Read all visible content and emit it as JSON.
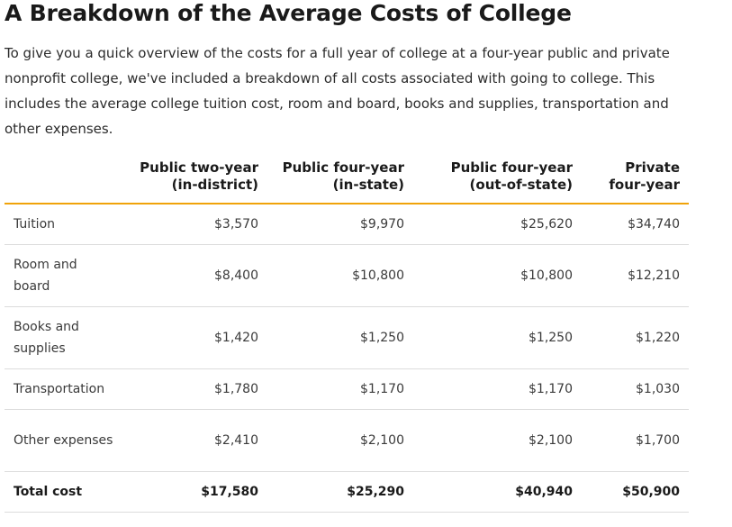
{
  "page": {
    "title": "A Breakdown of the Average Costs of College",
    "intro": "To give you a quick overview of the costs for a full year of college at a four-year public and private nonprofit college, we've included a breakdown of all costs associated with going to college. This includes the average college tuition cost, room and board, books and supplies, transportation and other expenses."
  },
  "table": {
    "headers": [
      "",
      "Public two-year (in-district)",
      "Public four-year (in-state)",
      "Public four-year (out-of-state)",
      "Private four-year"
    ],
    "rows": [
      {
        "label": "Tuition",
        "values": [
          "$3,570",
          "$9,970",
          "$25,620",
          "$34,740"
        ]
      },
      {
        "label": "Room and board",
        "values": [
          "$8,400",
          "$10,800",
          "$10,800",
          "$12,210"
        ]
      },
      {
        "label": "Books and supplies",
        "values": [
          "$1,420",
          "$1,250",
          "$1,250",
          "$1,220"
        ]
      },
      {
        "label": "Transportation",
        "values": [
          "$1,780",
          "$1,170",
          "$1,170",
          "$1,030"
        ]
      },
      {
        "label": "Other expenses",
        "values": [
          "$2,410",
          "$2,100",
          "$2,100",
          "$1,700"
        ]
      }
    ],
    "total": {
      "label": "Total cost",
      "values": [
        "$17,580",
        "$25,290",
        "$40,940",
        "$50,900"
      ]
    }
  },
  "colors": {
    "header_rule": "#f0a30a",
    "row_divider": "#dcdcdc",
    "text": "#1a1a1a"
  }
}
